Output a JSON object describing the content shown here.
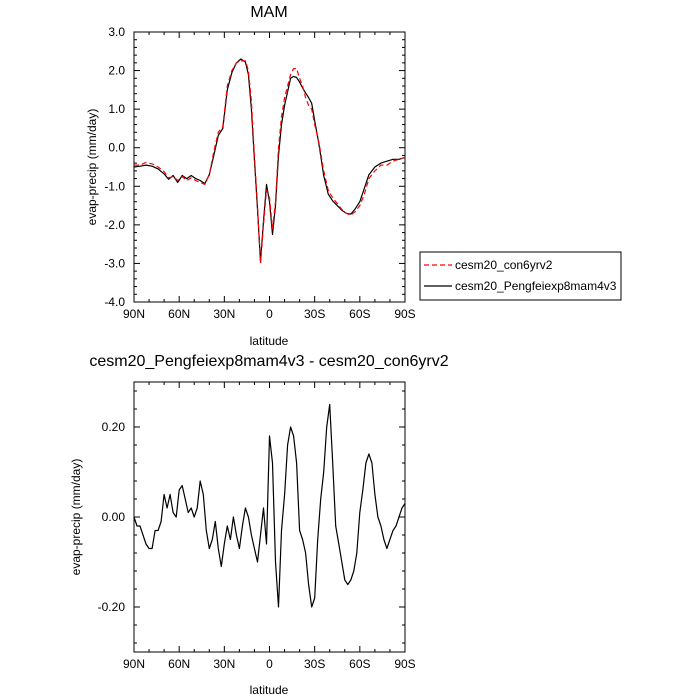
{
  "chart_data": [
    {
      "type": "line",
      "title": "MAM",
      "xlabel": "latitude",
      "ylabel": "evap-precip (mm/day)",
      "xlim": [
        90,
        -90
      ],
      "ylim": [
        -4,
        3
      ],
      "x_ticks": [
        90,
        60,
        30,
        0,
        -30,
        -60,
        -90
      ],
      "x_tick_labels": [
        "90N",
        "60N",
        "30N",
        "0",
        "30S",
        "60S",
        "90S"
      ],
      "y_ticks": [
        3,
        2,
        1,
        0,
        -1,
        -2,
        -3,
        -4
      ],
      "y_tick_labels": [
        "3.0",
        "2.0",
        "1.0",
        "0.0",
        "-1.0",
        "-2.0",
        "-3.0",
        "-4.0"
      ],
      "legend_position": "outside-right",
      "series": [
        {
          "name": "cesm20_con6yrv2",
          "color": "#ff0000",
          "dash": "dashed",
          "x": [
            90,
            86,
            82,
            78,
            74,
            70,
            67,
            64,
            61,
            58,
            55,
            52,
            49,
            46,
            43,
            40,
            37,
            34,
            31,
            28,
            25,
            22,
            19,
            16,
            14,
            12,
            10,
            8,
            6,
            4,
            2,
            0,
            -2,
            -4,
            -6,
            -8,
            -10,
            -12,
            -14,
            -16,
            -18,
            -20,
            -22,
            -24,
            -26,
            -28,
            -30,
            -33,
            -36,
            -39,
            -42,
            -45,
            -48,
            -51,
            -54,
            -57,
            -60,
            -63,
            -66,
            -70,
            -74,
            -78,
            -82,
            -86,
            -90
          ],
          "y": [
            -0.45,
            -0.45,
            -0.38,
            -0.42,
            -0.5,
            -0.62,
            -0.78,
            -0.75,
            -0.85,
            -0.75,
            -0.85,
            -0.78,
            -0.85,
            -0.9,
            -0.95,
            -0.7,
            -0.1,
            0.4,
            0.55,
            1.6,
            2.0,
            2.2,
            2.25,
            2.25,
            2.0,
            1.2,
            -0.2,
            -1.5,
            -3.0,
            -2.0,
            -1.1,
            -1.3,
            -2.1,
            -1.4,
            0.0,
            0.8,
            1.3,
            1.6,
            1.9,
            2.05,
            2.05,
            1.8,
            1.6,
            1.3,
            1.1,
            1.0,
            0.6,
            0.1,
            -0.6,
            -1.1,
            -1.3,
            -1.45,
            -1.6,
            -1.7,
            -1.75,
            -1.65,
            -1.5,
            -1.2,
            -0.8,
            -0.6,
            -0.45,
            -0.45,
            -0.35,
            -0.3,
            -0.25
          ]
        },
        {
          "name": "cesm20_Pengfeiexp8mam4v3",
          "color": "#000000",
          "dash": "solid",
          "x": [
            90,
            86,
            82,
            78,
            74,
            70,
            67,
            64,
            61,
            58,
            55,
            52,
            49,
            46,
            43,
            40,
            37,
            34,
            31,
            28,
            25,
            22,
            19,
            16,
            14,
            12,
            10,
            8,
            6,
            4,
            2,
            0,
            -2,
            -4,
            -6,
            -8,
            -10,
            -12,
            -14,
            -16,
            -18,
            -20,
            -22,
            -24,
            -26,
            -28,
            -30,
            -33,
            -36,
            -39,
            -42,
            -45,
            -48,
            -51,
            -54,
            -57,
            -60,
            -63,
            -66,
            -70,
            -74,
            -78,
            -82,
            -86,
            -90
          ],
          "y": [
            -0.5,
            -0.48,
            -0.45,
            -0.48,
            -0.55,
            -0.68,
            -0.82,
            -0.72,
            -0.9,
            -0.72,
            -0.8,
            -0.72,
            -0.8,
            -0.85,
            -0.93,
            -0.7,
            -0.2,
            0.32,
            0.5,
            1.5,
            1.95,
            2.2,
            2.3,
            2.22,
            1.9,
            1.0,
            -0.3,
            -1.6,
            -2.95,
            -1.9,
            -0.95,
            -1.4,
            -2.25,
            -1.5,
            -0.2,
            0.6,
            1.1,
            1.45,
            1.8,
            1.85,
            1.82,
            1.7,
            1.55,
            1.42,
            1.3,
            1.15,
            0.7,
            0.05,
            -0.72,
            -1.2,
            -1.38,
            -1.5,
            -1.62,
            -1.7,
            -1.72,
            -1.58,
            -1.4,
            -1.05,
            -0.7,
            -0.5,
            -0.4,
            -0.35,
            -0.3,
            -0.3,
            -0.25
          ]
        }
      ]
    },
    {
      "type": "line",
      "title": "cesm20_Pengfeiexp8mam4v3 - cesm20_con6yrv2",
      "xlabel": "latitude",
      "ylabel": "evap-precip (mm/day)",
      "xlim": [
        90,
        -90
      ],
      "ylim": [
        -0.3,
        0.3
      ],
      "x_ticks": [
        90,
        60,
        30,
        0,
        -30,
        -60,
        -90
      ],
      "x_tick_labels": [
        "90N",
        "60N",
        "30N",
        "0",
        "30S",
        "60S",
        "90S"
      ],
      "y_ticks": [
        0.2,
        0.0,
        -0.2
      ],
      "y_tick_labels": [
        "0.20",
        "0.00",
        "-0.20"
      ],
      "series": [
        {
          "color": "#000000",
          "dash": "solid",
          "x": [
            90,
            88,
            86,
            84,
            82,
            80,
            78,
            76,
            74,
            72,
            70,
            68,
            66,
            64,
            62,
            60,
            58,
            56,
            54,
            52,
            50,
            48,
            46,
            44,
            42,
            40,
            38,
            36,
            34,
            32,
            30,
            28,
            26,
            24,
            22,
            20,
            18,
            16,
            14,
            12,
            10,
            8,
            6,
            4,
            2,
            0,
            -2,
            -4,
            -6,
            -8,
            -10,
            -12,
            -14,
            -16,
            -18,
            -20,
            -22,
            -24,
            -26,
            -28,
            -30,
            -32,
            -34,
            -36,
            -38,
            -40,
            -42,
            -44,
            -46,
            -48,
            -50,
            -52,
            -54,
            -56,
            -58,
            -60,
            -62,
            -64,
            -66,
            -68,
            -70,
            -72,
            -74,
            -76,
            -78,
            -80,
            -82,
            -84,
            -86,
            -88,
            -90
          ],
          "y": [
            0.0,
            -0.02,
            -0.02,
            -0.04,
            -0.06,
            -0.07,
            -0.07,
            -0.03,
            -0.03,
            -0.01,
            0.05,
            0.02,
            0.05,
            0.01,
            0.0,
            0.06,
            0.07,
            0.04,
            0.01,
            0.02,
            0.0,
            0.02,
            0.08,
            0.05,
            -0.03,
            -0.07,
            -0.05,
            -0.01,
            -0.07,
            -0.11,
            -0.06,
            -0.02,
            -0.05,
            0.0,
            -0.04,
            -0.07,
            -0.02,
            0.02,
            0.0,
            -0.04,
            -0.07,
            -0.1,
            -0.04,
            0.02,
            -0.06,
            0.18,
            0.12,
            -0.1,
            -0.2,
            -0.03,
            0.05,
            0.16,
            0.2,
            0.18,
            0.12,
            -0.03,
            -0.05,
            -0.08,
            -0.15,
            -0.2,
            -0.18,
            -0.05,
            0.04,
            0.1,
            0.2,
            0.25,
            0.12,
            -0.02,
            -0.06,
            -0.1,
            -0.14,
            -0.15,
            -0.14,
            -0.12,
            -0.08,
            0.01,
            0.06,
            0.12,
            0.14,
            0.12,
            0.05,
            0.0,
            -0.02,
            -0.05,
            -0.07,
            -0.05,
            -0.03,
            -0.02,
            0.0,
            0.02,
            0.03
          ]
        }
      ]
    }
  ]
}
